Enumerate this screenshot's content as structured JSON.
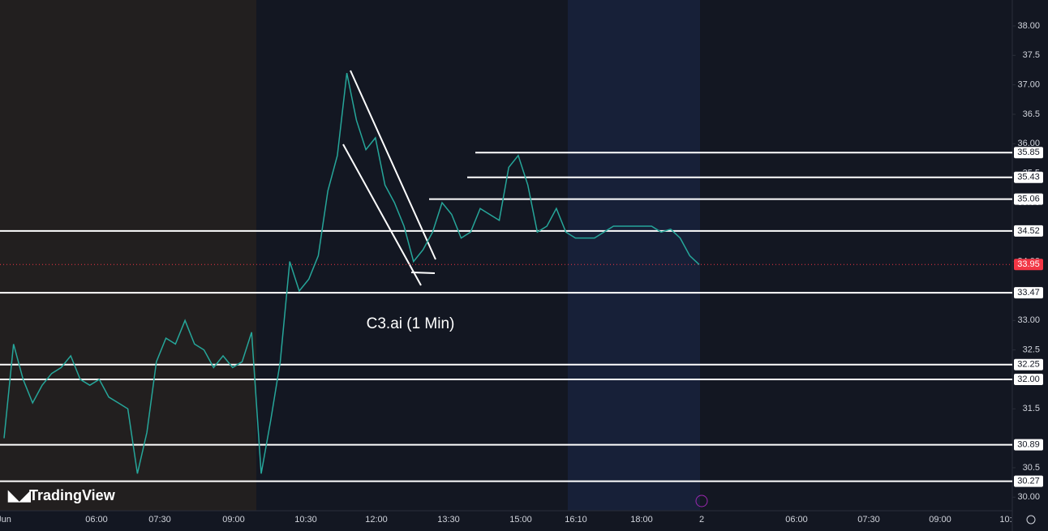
{
  "chart_data": {
    "type": "line",
    "annotation": "C3.ai (1 Min)",
    "watermark": "TradingView",
    "color": "#26a69a",
    "ylim": [
      29.77,
      38.44
    ],
    "yticks": [
      {
        "value": 30,
        "label": "30.00"
      },
      30.5,
      31.5,
      {
        "value": 32,
        "label": "32.00"
      },
      32.5,
      {
        "value": 33,
        "label": "33.00"
      },
      33.5,
      {
        "value": 34,
        "label": "34.00"
      },
      34.5,
      {
        "value": 35,
        "label": "35.00"
      },
      35.5,
      {
        "value": 36,
        "label": "36.00"
      },
      36.5,
      {
        "value": 37,
        "label": "37.00"
      },
      37.5,
      {
        "value": 38,
        "label": "38.00"
      }
    ],
    "xticks": [
      "Jun",
      "06:00",
      "07:30",
      "09:00",
      "10:30",
      "12:00",
      "13:30",
      "15:00",
      "16:10",
      "18:00",
      "2",
      "06:00",
      "07:30",
      "09:00",
      "10:"
    ],
    "levels": [
      35.85,
      35.43,
      35.06,
      34.52,
      33.47,
      32.25,
      {
        "value": 32,
        "label": "32.00"
      },
      30.89,
      30.27
    ],
    "last_price": 33.95,
    "series": [
      {
        "name": "C3.ai",
        "color": "#26a69a",
        "values": [
          31.0,
          32.6,
          32.0,
          31.6,
          31.9,
          32.1,
          32.2,
          32.4,
          32.0,
          31.9,
          32.0,
          31.7,
          31.6,
          31.5,
          30.4,
          31.1,
          32.3,
          32.7,
          32.6,
          33.0,
          32.6,
          32.5,
          32.2,
          32.4,
          32.2,
          32.3,
          32.8,
          30.4,
          31.3,
          32.3,
          34.0,
          33.5,
          33.7,
          34.1,
          35.2,
          35.8,
          37.2,
          36.4,
          35.9,
          36.1,
          35.3,
          35.0,
          34.6,
          34.0,
          34.2,
          34.5,
          35.0,
          34.8,
          34.4,
          34.5,
          34.9,
          34.8,
          34.7,
          35.6,
          35.8,
          35.3,
          34.5,
          34.6,
          34.9,
          34.5,
          34.4,
          34.4,
          34.4,
          34.5,
          34.6,
          34.6,
          34.6,
          34.6,
          34.6,
          34.5,
          34.55,
          34.4,
          34.1,
          33.95
        ]
      }
    ]
  }
}
